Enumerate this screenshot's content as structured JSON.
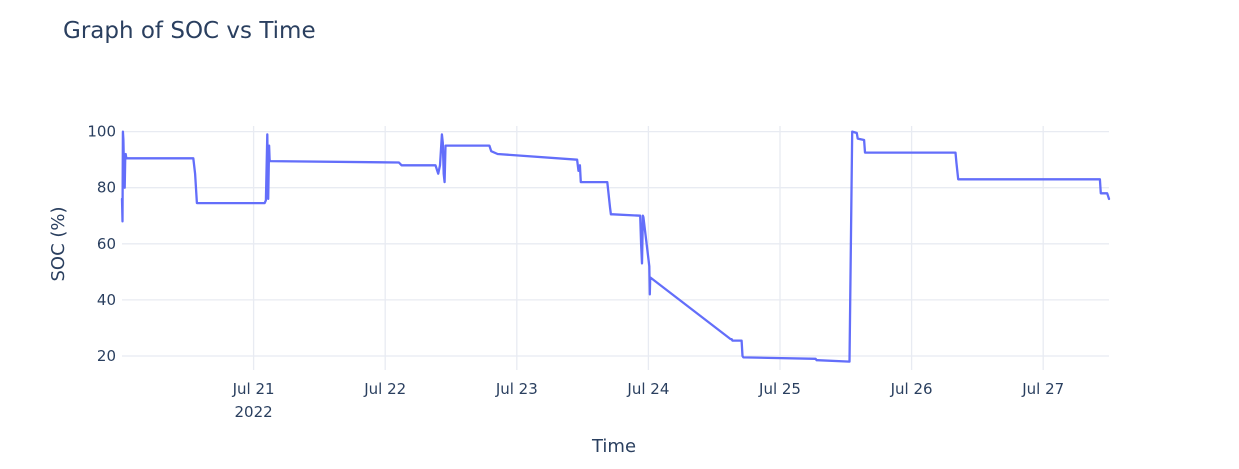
{
  "chart_data": {
    "type": "line",
    "title": "Graph of SOC vs Time",
    "xlabel": "Time",
    "ylabel": "SOC (%)",
    "xlim": [
      "2022-07-20T00:00",
      "2022-07-27T12:00"
    ],
    "ylim": [
      15,
      102
    ],
    "grid": true,
    "line_color": "#636efa",
    "x_ticks": [
      {
        "value": "2022-07-21T00:00",
        "label": "Jul 21",
        "sublabel": "2022"
      },
      {
        "value": "2022-07-22T00:00",
        "label": "Jul 22",
        "sublabel": ""
      },
      {
        "value": "2022-07-23T00:00",
        "label": "Jul 23",
        "sublabel": ""
      },
      {
        "value": "2022-07-24T00:00",
        "label": "Jul 24",
        "sublabel": ""
      },
      {
        "value": "2022-07-25T00:00",
        "label": "Jul 25",
        "sublabel": ""
      },
      {
        "value": "2022-07-26T00:00",
        "label": "Jul 26",
        "sublabel": ""
      },
      {
        "value": "2022-07-27T00:00",
        "label": "Jul 27",
        "sublabel": ""
      }
    ],
    "y_ticks": [
      20,
      40,
      60,
      80,
      100
    ],
    "series": [
      {
        "name": "",
        "x": [
          "2022-07-20T00:00",
          "2022-07-20T00:05",
          "2022-07-20T00:10",
          "2022-07-20T00:15",
          "2022-07-20T00:20",
          "2022-07-20T00:25",
          "2022-07-20T00:30",
          "2022-07-20T00:35",
          "2022-07-20T00:40",
          "2022-07-20T00:45",
          "2022-07-20T00:50",
          "2022-07-20T13:00",
          "2022-07-20T13:20",
          "2022-07-20T13:40",
          "2022-07-20T14:00",
          "2022-07-21T02:00",
          "2022-07-21T02:15",
          "2022-07-21T02:30",
          "2022-07-21T02:40",
          "2022-07-21T02:50",
          "2022-07-21T02:55",
          "2022-07-21T03:00",
          "2022-07-22T02:30",
          "2022-07-22T03:00",
          "2022-07-22T09:10",
          "2022-07-22T09:30",
          "2022-07-22T09:40",
          "2022-07-22T10:00",
          "2022-07-22T10:20",
          "2022-07-22T10:30",
          "2022-07-22T10:40",
          "2022-07-22T10:50",
          "2022-07-22T11:00",
          "2022-07-22T11:20",
          "2022-07-22T11:30",
          "2022-07-22T19:00",
          "2022-07-22T19:20",
          "2022-07-22T20:30",
          "2022-07-23T11:00",
          "2022-07-23T11:15",
          "2022-07-23T11:30",
          "2022-07-23T11:40",
          "2022-07-23T12:00",
          "2022-07-23T16:30",
          "2022-07-23T17:00",
          "2022-07-23T17:10",
          "2022-07-23T17:20",
          "2022-07-23T17:30",
          "2022-07-23T22:30",
          "2022-07-23T22:40",
          "2022-07-23T22:50",
          "2022-07-23T23:00",
          "2022-07-23T23:05",
          "2022-07-24T00:10",
          "2022-07-24T00:15",
          "2022-07-24T00:20",
          "2022-07-24T15:00",
          "2022-07-24T15:10",
          "2022-07-24T15:20",
          "2022-07-24T17:00",
          "2022-07-24T17:10",
          "2022-07-24T17:20",
          "2022-07-25T06:30",
          "2022-07-25T06:40",
          "2022-07-25T06:50",
          "2022-07-25T12:40",
          "2022-07-25T13:10",
          "2022-07-25T14:00",
          "2022-07-25T14:10",
          "2022-07-25T15:20",
          "2022-07-25T15:30",
          "2022-07-25T15:40",
          "2022-07-25T16:20",
          "2022-07-25T16:40",
          "2022-07-26T08:00",
          "2022-07-26T08:10",
          "2022-07-26T08:20",
          "2022-07-26T08:30",
          "2022-07-26T08:40",
          "2022-07-26T08:50",
          "2022-07-27T10:00",
          "2022-07-27T10:20",
          "2022-07-27T10:30",
          "2022-07-27T11:20",
          "2022-07-27T11:40",
          "2022-07-27T12:00"
        ],
        "y": [
          76,
          68,
          100,
          97,
          90,
          92,
          80,
          90,
          92,
          91,
          90.5,
          90.5,
          85,
          74.5,
          74.5,
          74.5,
          75.5,
          99,
          76,
          95,
          90,
          89.5,
          89,
          88,
          88,
          86,
          85,
          88,
          99,
          96,
          85,
          82,
          95,
          95,
          95,
          95,
          93,
          92,
          90,
          86,
          88,
          82,
          82,
          82,
          73,
          70.5,
          70.5,
          70.5,
          70,
          60,
          53,
          70,
          69.5,
          52,
          42,
          48,
          26,
          26,
          25.5,
          25.5,
          20,
          19.5,
          19,
          18.5,
          18.5,
          18,
          100,
          99.5,
          97.5,
          97,
          92.5,
          92.5,
          92.5,
          92.5,
          92.5,
          89,
          86,
          83,
          83,
          83,
          83,
          83,
          78,
          78,
          78,
          76
        ]
      }
    ]
  }
}
